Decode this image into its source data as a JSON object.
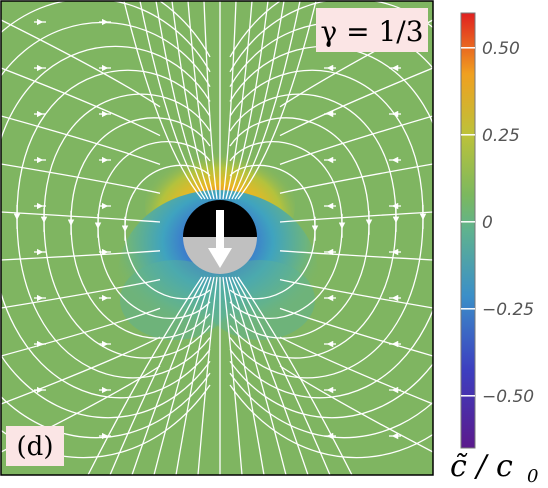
{
  "figure": {
    "panel_label": "(d)",
    "parameter_label": "γ = 1/3"
  },
  "colorbar": {
    "label_main": "c̃ / c",
    "label_sub": "0",
    "colors": [
      "#5b1a8c",
      "#3d4fc4",
      "#3fa0c0",
      "#7bb85f",
      "#b8c23a",
      "#f0a020",
      "#e03020"
    ]
  },
  "chart_data": {
    "type": "heatmap",
    "title": "",
    "colorbar_label": "c̃/c0",
    "colorbar_range": [
      -0.65,
      0.6
    ],
    "colorbar_ticks": [
      {
        "value": 0.5,
        "label": "0.50"
      },
      {
        "value": 0.25,
        "label": "0.25"
      },
      {
        "value": 0,
        "label": "0"
      },
      {
        "value": -0.25,
        "label": "−0.25"
      },
      {
        "value": -0.5,
        "label": "−0.50"
      }
    ],
    "field_description": "concentration perturbation around swimmer: positive (front, top) red, negative (back, bottom) blue",
    "background_value": 0,
    "particle": {
      "top_color": "#000000",
      "bottom_color": "#c0c0c0",
      "arrow_direction": "down",
      "arrow_color": "#ffffff"
    },
    "streamline_color": "#ffffff",
    "background_color": "#7fb561"
  }
}
